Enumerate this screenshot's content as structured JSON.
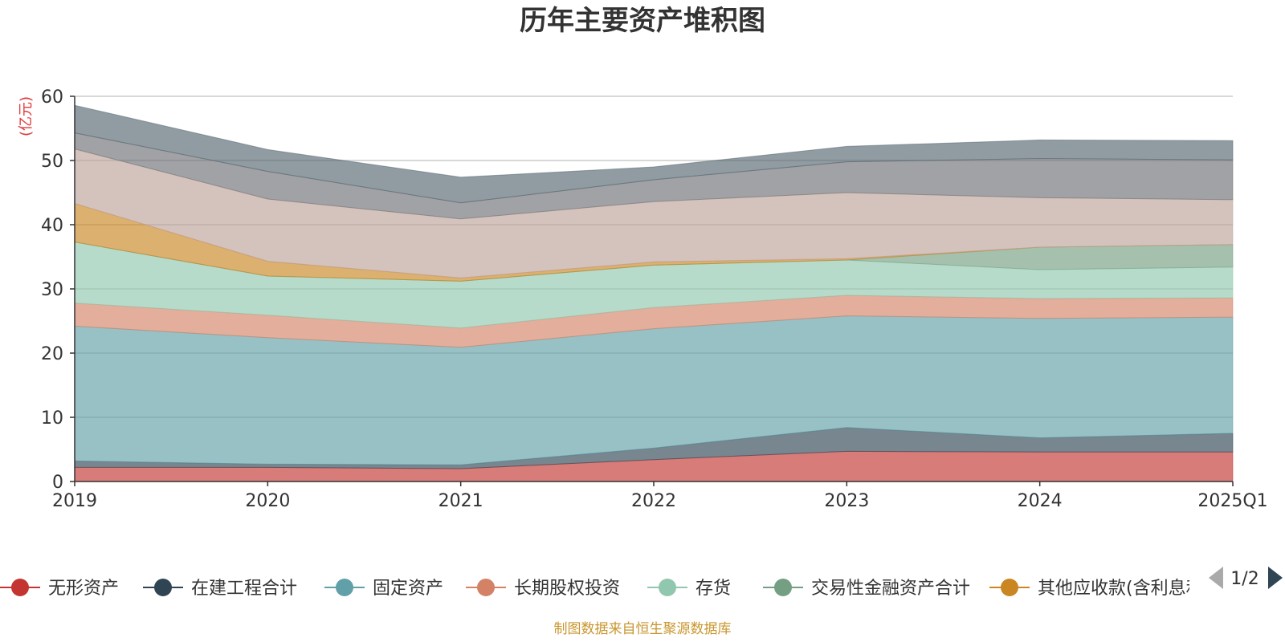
{
  "chart_data": {
    "type": "area",
    "stacked": true,
    "title": "历年主要资产堆积图",
    "unit": "(亿元)",
    "ylim": [
      0,
      60
    ],
    "yticks": [
      0,
      10,
      20,
      30,
      40,
      50,
      60
    ],
    "categories": [
      "2019",
      "2020",
      "2021",
      "2022",
      "2023",
      "2024",
      "2025Q1"
    ],
    "grid": true,
    "legend_position": "bottom",
    "series": [
      {
        "name": "无形资产",
        "color": "#c23531",
        "values": [
          2.2,
          2.2,
          2.0,
          3.4,
          4.7,
          4.6,
          4.6
        ]
      },
      {
        "name": "在建工程合计",
        "color": "#2f4554",
        "values": [
          1.0,
          0.5,
          0.6,
          1.8,
          3.7,
          2.2,
          2.9
        ]
      },
      {
        "name": "固定资产",
        "color": "#61a0a8",
        "values": [
          21.0,
          19.7,
          18.3,
          18.6,
          17.4,
          18.6,
          18.1
        ]
      },
      {
        "name": "长期股权投资",
        "color": "#d48265",
        "values": [
          3.6,
          3.5,
          3.0,
          3.3,
          3.2,
          3.1,
          3.0
        ]
      },
      {
        "name": "存货",
        "color": "#91c7ae",
        "values": [
          9.5,
          6.1,
          7.3,
          6.6,
          5.5,
          4.5,
          4.8
        ]
      },
      {
        "name": "交易性金融资产合计",
        "color": "#749f83",
        "values": [
          0,
          0,
          0,
          0,
          0,
          3.5,
          3.5
        ]
      },
      {
        "name": "其他应收款(含利息和股利)",
        "color": "#ca8622",
        "values": [
          6.0,
          2.3,
          0.5,
          0.5,
          0.2,
          0,
          0
        ]
      },
      {
        "name": "",
        "color": "#bda29a",
        "values": [
          8.5,
          9.7,
          9.2,
          9.4,
          10.3,
          7.7,
          7.0
        ]
      },
      {
        "name": "",
        "color": "#6e7074",
        "values": [
          2.5,
          4.3,
          2.5,
          3.4,
          4.8,
          6.1,
          6.2
        ]
      },
      {
        "name": "",
        "color": "#546570",
        "values": [
          4.3,
          3.4,
          4.0,
          2.0,
          2.4,
          2.9,
          3.0
        ]
      }
    ]
  },
  "legend": {
    "visible_count": 7,
    "pager_text": "1/2"
  },
  "source_note": "制图数据来自恒生聚源数据库"
}
